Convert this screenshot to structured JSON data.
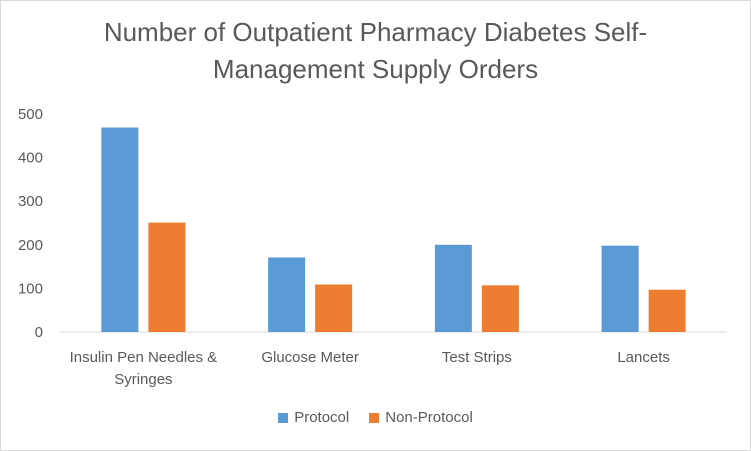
{
  "title": "Number of Outpatient Pharmacy Diabetes Self-\nManagement Supply Orders",
  "chart_data": {
    "type": "bar",
    "title": "Number of Outpatient Pharmacy Diabetes Self-Management Supply Orders",
    "categories": [
      "Insulin Pen Needles & Syringes",
      "Glucose Meter",
      "Test Strips",
      "Lancets"
    ],
    "category_lines": [
      [
        "Insulin Pen Needles &",
        "Syringes"
      ],
      [
        "Glucose Meter"
      ],
      [
        "Test Strips"
      ],
      [
        "Lancets"
      ]
    ],
    "series": [
      {
        "name": "Protocol",
        "color": "#5b9bd5",
        "values": [
          469,
          171,
          200,
          198
        ]
      },
      {
        "name": "Non-Protocol",
        "color": "#ed7d31",
        "values": [
          251,
          109,
          107,
          97
        ]
      }
    ],
    "ylim": [
      0,
      500
    ],
    "yticks": [
      0,
      100,
      200,
      300,
      400,
      500
    ],
    "xlabel": "",
    "ylabel": "",
    "grid": false,
    "legend": "bottom"
  }
}
